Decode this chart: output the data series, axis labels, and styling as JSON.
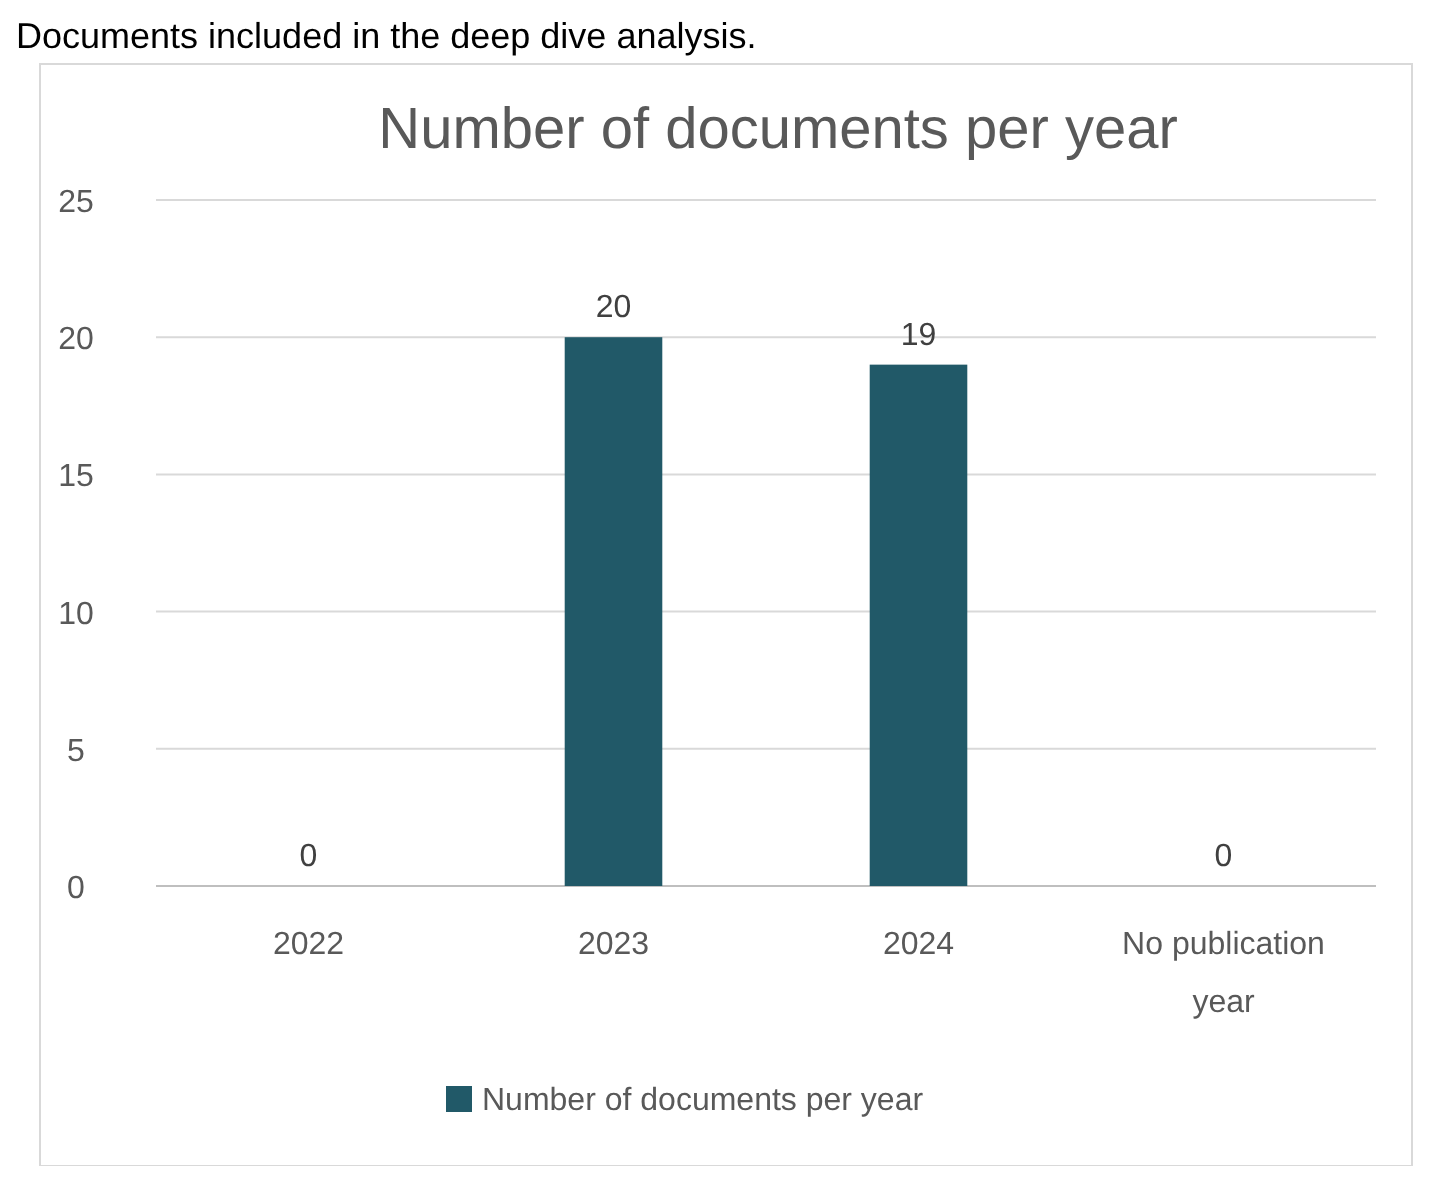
{
  "chart_data": {
    "type": "bar",
    "title": "Number of documents per year",
    "annotations": [
      "Documents included in the deep dive analysis."
    ],
    "categories": [
      "2022",
      "2023",
      "2024",
      "No publication year"
    ],
    "series": [
      {
        "name": "Number of documents per year",
        "color": "#215968",
        "values": [
          0,
          20,
          19,
          0
        ]
      }
    ],
    "ylim": [
      0,
      25
    ],
    "yticks": [
      0,
      5,
      10,
      15,
      20,
      25
    ],
    "grid": "y",
    "legend": "bottom",
    "data_labels": true
  }
}
